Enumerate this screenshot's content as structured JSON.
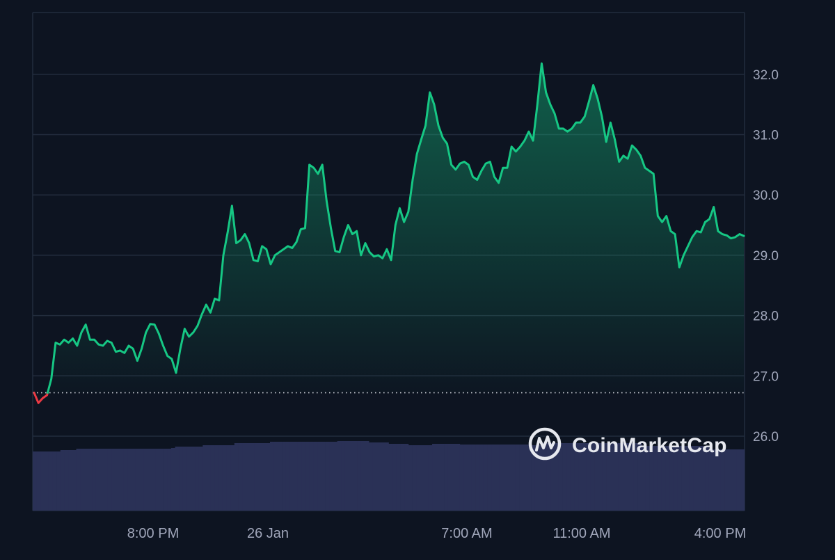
{
  "chart_data": {
    "type": "area",
    "title": "",
    "xlabel": "",
    "ylabel": "",
    "ylim": [
      24.75,
      33.0
    ],
    "y_ticks": [
      "26.0",
      "27.0",
      "28.0",
      "29.0",
      "30.0",
      "31.0",
      "32.0"
    ],
    "x_ticks": [
      "8:00 PM",
      "26 Jan",
      "7:00 AM",
      "11:00 AM",
      "4:00 PM"
    ],
    "baseline": 26.72,
    "grid": true,
    "series": [
      {
        "values": [
          26.72,
          26.55,
          26.63,
          26.68,
          26.95,
          27.55,
          27.52,
          27.6,
          27.55,
          27.62,
          27.5,
          27.72,
          27.85,
          27.6,
          27.6,
          27.52,
          27.5,
          27.58,
          27.55,
          27.4,
          27.42,
          27.38,
          27.5,
          27.45,
          27.25,
          27.45,
          27.72,
          27.86,
          27.85,
          27.7,
          27.5,
          27.33,
          27.28,
          27.05,
          27.45,
          27.78,
          27.65,
          27.72,
          27.83,
          28.02,
          28.18,
          28.05,
          28.28,
          28.25,
          29.0,
          29.38,
          29.82,
          29.2,
          29.25,
          29.35,
          29.2,
          28.92,
          28.9,
          29.15,
          29.1,
          28.85,
          29.0,
          29.05,
          29.1,
          29.15,
          29.12,
          29.22,
          29.43,
          29.45,
          30.5,
          30.45,
          30.35,
          30.5,
          29.9,
          29.45,
          29.07,
          29.05,
          29.3,
          29.5,
          29.35,
          29.4,
          29.0,
          29.2,
          29.05,
          28.98,
          29.0,
          28.95,
          29.1,
          28.92,
          29.5,
          29.78,
          29.55,
          29.72,
          30.25,
          30.68,
          30.92,
          31.15,
          31.7,
          31.5,
          31.15,
          30.95,
          30.85,
          30.5,
          30.42,
          30.52,
          30.55,
          30.5,
          30.3,
          30.25,
          30.4,
          30.52,
          30.55,
          30.3,
          30.2,
          30.45,
          30.45,
          30.8,
          30.72,
          30.8,
          30.9,
          31.05,
          30.9,
          31.5,
          32.18,
          31.7,
          31.5,
          31.35,
          31.1,
          31.1,
          31.05,
          31.1,
          31.2,
          31.2,
          31.3,
          31.55,
          31.82,
          31.6,
          31.3,
          30.88,
          31.2,
          30.92,
          30.55,
          30.65,
          30.6,
          30.82,
          30.75,
          30.65,
          30.45,
          30.4,
          30.35,
          29.65,
          29.55,
          29.65,
          29.4,
          29.35,
          28.8,
          29.0,
          29.15,
          29.3,
          29.4,
          29.38,
          29.55,
          29.6,
          29.8,
          29.4,
          29.35,
          29.33,
          29.28,
          29.3,
          29.35,
          29.32
        ]
      }
    ],
    "volume_bars": 180,
    "colors": {
      "background": "#0d1421",
      "grid": "#222c3d",
      "axis_text": "#a1a7bb",
      "line_up": "#16c784",
      "line_down": "#ea3943",
      "baseline_dots": "#c9ccd3",
      "volume": "#2a3156",
      "watermark": "#e6e8ee"
    }
  },
  "watermark": {
    "text": "CoinMarketCap",
    "icon": "coinmarketcap-logo-icon"
  }
}
